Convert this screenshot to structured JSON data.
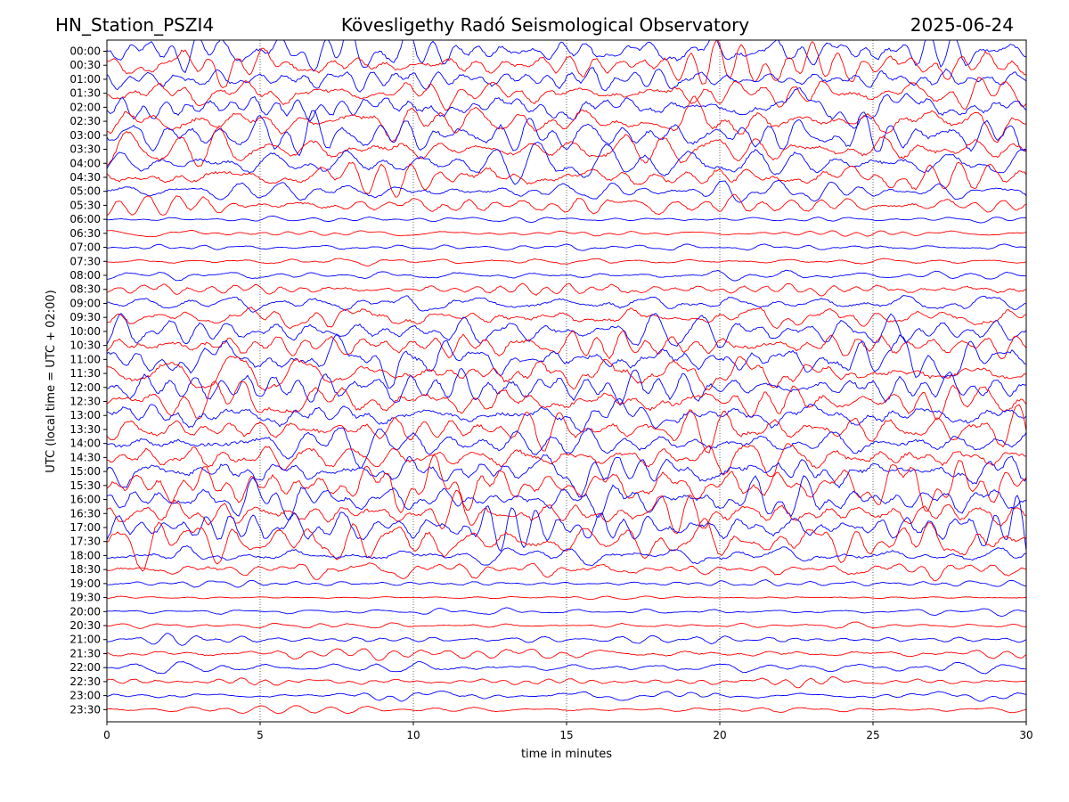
{
  "header": {
    "station": "HN_Station_PSZI4",
    "observatory": "Kövesligethy Radó Seismological Observatory",
    "date": "2025-06-24"
  },
  "chart_data": {
    "type": "line",
    "title": "Kövesligethy Radó Seismological Observatory",
    "xlabel": "time in minutes",
    "ylabel": "UTC (local time = UTC + 02:00)",
    "xlim": [
      0,
      30
    ],
    "x_ticks": [
      "0",
      "5",
      "10",
      "15",
      "20",
      "25",
      "30"
    ],
    "grid": "vertical dotted at x ticks",
    "series_colors": [
      "#0000ff",
      "#ff0000"
    ],
    "trace_labels": [
      "00:00",
      "00:30",
      "01:00",
      "01:30",
      "02:00",
      "02:30",
      "03:00",
      "03:30",
      "04:00",
      "04:30",
      "05:00",
      "05:30",
      "06:00",
      "06:30",
      "07:00",
      "07:30",
      "08:00",
      "08:30",
      "09:00",
      "09:30",
      "10:00",
      "10:30",
      "11:00",
      "11:30",
      "12:00",
      "12:30",
      "13:00",
      "13:30",
      "14:00",
      "14:30",
      "15:00",
      "15:30",
      "16:00",
      "16:30",
      "17:00",
      "17:30",
      "18:00",
      "18:30",
      "19:00",
      "19:30",
      "20:00",
      "20:30",
      "21:00",
      "21:30",
      "22:00",
      "22:30",
      "23:00",
      "23:30"
    ],
    "relative_amplitude": [
      0.95,
      0.95,
      0.8,
      0.85,
      0.9,
      0.95,
      0.95,
      0.9,
      0.85,
      0.8,
      0.5,
      0.5,
      0.15,
      0.15,
      0.2,
      0.2,
      0.25,
      0.45,
      0.6,
      0.7,
      0.8,
      0.9,
      1.0,
      1.0,
      1.0,
      1.0,
      1.0,
      1.0,
      1.0,
      1.0,
      1.0,
      1.0,
      1.0,
      1.0,
      0.95,
      0.9,
      0.6,
      0.5,
      0.2,
      0.15,
      0.15,
      0.2,
      0.25,
      0.3,
      0.3,
      0.25,
      0.2,
      0.2
    ]
  }
}
